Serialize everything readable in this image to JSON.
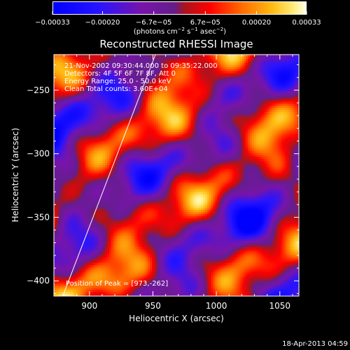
{
  "colors": {
    "background": "#000000",
    "text": "#ffffff",
    "colormap": [
      "#0000ff",
      "#4c3cff",
      "#2a00ff",
      "#5a00d0",
      "#7a10a0",
      "#6b168e",
      "#5c1d9b",
      "#b21515",
      "#ff0000",
      "#ff5a00",
      "#ff8a00",
      "#ffb000",
      "#ffd84a",
      "#fff4b0"
    ]
  },
  "footer": {
    "date": "18-Apr-2013 04:59"
  },
  "annotations": {
    "time_line": "21-Nov-2002 09:30:44.000 to 09:35:22.000",
    "detectors": "Detectors: 4F 5F 6F 7F 8F, Att 0",
    "energy": "Energy Range: 25.0 - 50.0 keV",
    "clean": "Clean     Total counts: 3.60E+04",
    "peak": "Position of Peak = [973,-262]"
  },
  "chart_data": {
    "type": "heatmap",
    "title": "Reconstructed RHESSI Image",
    "xlabel": "Heliocentric X (arcsec)",
    "ylabel": "Heliocentric Y (arcsec)",
    "xlim": [
      872,
      1065
    ],
    "ylim": [
      -412,
      -222
    ],
    "x_ticks": [
      900,
      950,
      1000,
      1050
    ],
    "y_ticks": [
      -250,
      -300,
      -350,
      -400
    ],
    "x_tick_labels": [
      "900",
      "950",
      "1000",
      "1050"
    ],
    "y_tick_labels": [
      "−250",
      "−300",
      "−350",
      "−400"
    ],
    "colorbar": {
      "min": -0.00033,
      "max": 0.00033,
      "ticks": [
        -0.00033,
        -0.0002,
        -6.7e-05,
        6.7e-05,
        0.0002,
        0.00033
      ],
      "tick_labels": [
        "−0.00033",
        "−0.00020",
        "−6.7e−05",
        "6.7e−05",
        "0.00020",
        "0.00033"
      ],
      "unit_prefix": "(photons cm",
      "unit_exp1": "−2",
      "unit_mid": " s",
      "unit_exp2": "−1",
      "unit_mid2": " asec",
      "unit_exp3": "−2",
      "unit_suffix": ")"
    },
    "limb_line": {
      "x": [
        879,
        952
      ],
      "y": [
        -412,
        -222
      ]
    },
    "peak": {
      "x": 973,
      "y": -262
    }
  }
}
